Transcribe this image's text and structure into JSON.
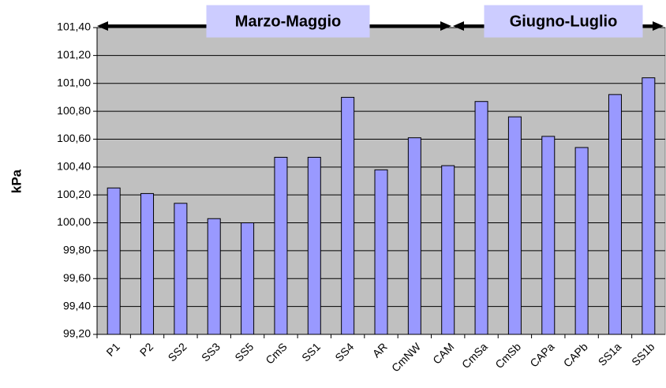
{
  "chart_data": {
    "type": "bar",
    "y_label": "kPa",
    "annotations": [
      "Marzo-Maggio",
      "Giugno-Luglio"
    ],
    "categories": [
      "P1",
      "P2",
      "SS2",
      "SS3",
      "SS5",
      "CmS",
      "SS1",
      "SS4",
      "AR",
      "CmNW",
      "CAM",
      "CmSa",
      "CmSb",
      "CAPa",
      "CAPb",
      "SS1a",
      "SS1b"
    ],
    "values": [
      100.25,
      100.21,
      100.14,
      100.03,
      100.0,
      100.47,
      100.47,
      100.9,
      100.38,
      100.61,
      100.41,
      100.87,
      100.76,
      100.62,
      100.54,
      100.92,
      101.04
    ],
    "color": "#9999ff",
    "ylim": [
      99.2,
      101.4
    ],
    "yticks": [
      {
        "value": 99.2,
        "label": "99,20"
      },
      {
        "value": 99.4,
        "label": "99,40"
      },
      {
        "value": 99.6,
        "label": "99,60"
      },
      {
        "value": 99.8,
        "label": "99,80"
      },
      {
        "value": 100.0,
        "label": "100,00"
      },
      {
        "value": 100.2,
        "label": "100,20"
      },
      {
        "value": 100.4,
        "label": "100,40"
      },
      {
        "value": 100.6,
        "label": "100,60"
      },
      {
        "value": 100.8,
        "label": "100,80"
      },
      {
        "value": 101.0,
        "label": "101,00"
      },
      {
        "value": 101.2,
        "label": "101,20"
      },
      {
        "value": 101.4,
        "label": "101,40"
      }
    ],
    "grid": true
  }
}
